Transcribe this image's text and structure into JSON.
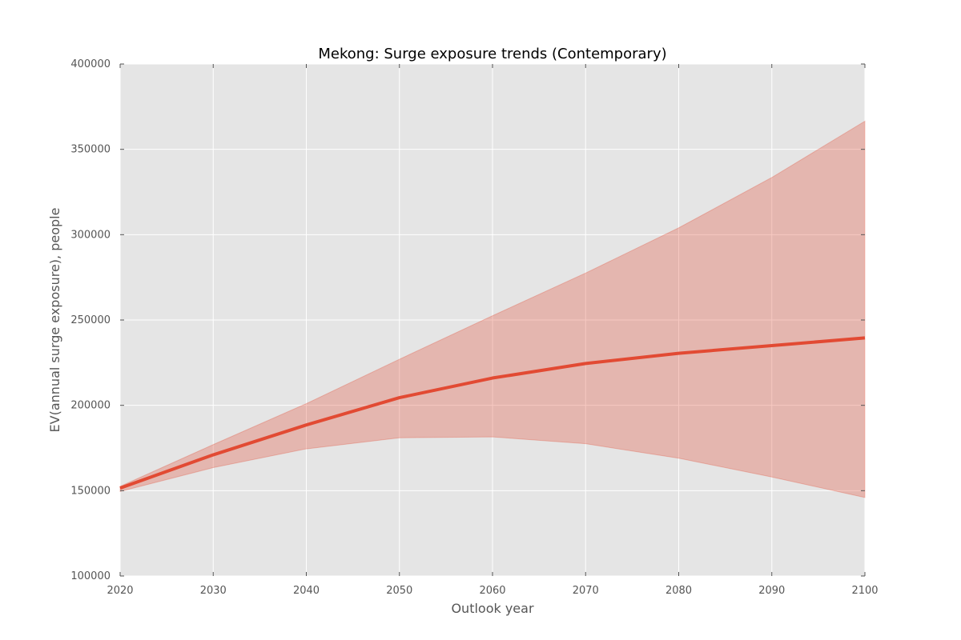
{
  "chart_data": {
    "type": "line",
    "title": "Mekong: Surge exposure trends (Contemporary)",
    "xlabel": "Outlook year",
    "ylabel": "EV(annual surge exposure), people",
    "xlim": [
      2020,
      2100
    ],
    "ylim": [
      100000,
      400000
    ],
    "x_ticks": [
      2020,
      2030,
      2040,
      2050,
      2060,
      2070,
      2080,
      2090,
      2100
    ],
    "y_ticks": [
      100000,
      150000,
      200000,
      250000,
      300000,
      350000,
      400000
    ],
    "x_tick_labels": [
      "2020",
      "2030",
      "2040",
      "2050",
      "2060",
      "2070",
      "2080",
      "2090",
      "2100"
    ],
    "y_tick_labels": [
      "100000",
      "150000",
      "200000",
      "250000",
      "300000",
      "350000",
      "400000"
    ],
    "grid": true,
    "x": [
      2020,
      2030,
      2040,
      2050,
      2060,
      2070,
      2080,
      2090,
      2100
    ],
    "series": [
      {
        "values": [
          151500,
          171000,
          188500,
          204500,
          216000,
          224500,
          230500,
          235000,
          239500
        ],
        "color": "#e24a33"
      }
    ],
    "band": {
      "upper": [
        152500,
        177000,
        201000,
        227000,
        252500,
        277500,
        304000,
        333500,
        366500
      ],
      "lower": [
        149500,
        163500,
        174500,
        181000,
        181500,
        177500,
        169000,
        158000,
        146000
      ],
      "color": "#e24a33",
      "opacity": 0.3
    },
    "plot_background": "#e5e5e5",
    "grid_color": "#ffffff"
  }
}
